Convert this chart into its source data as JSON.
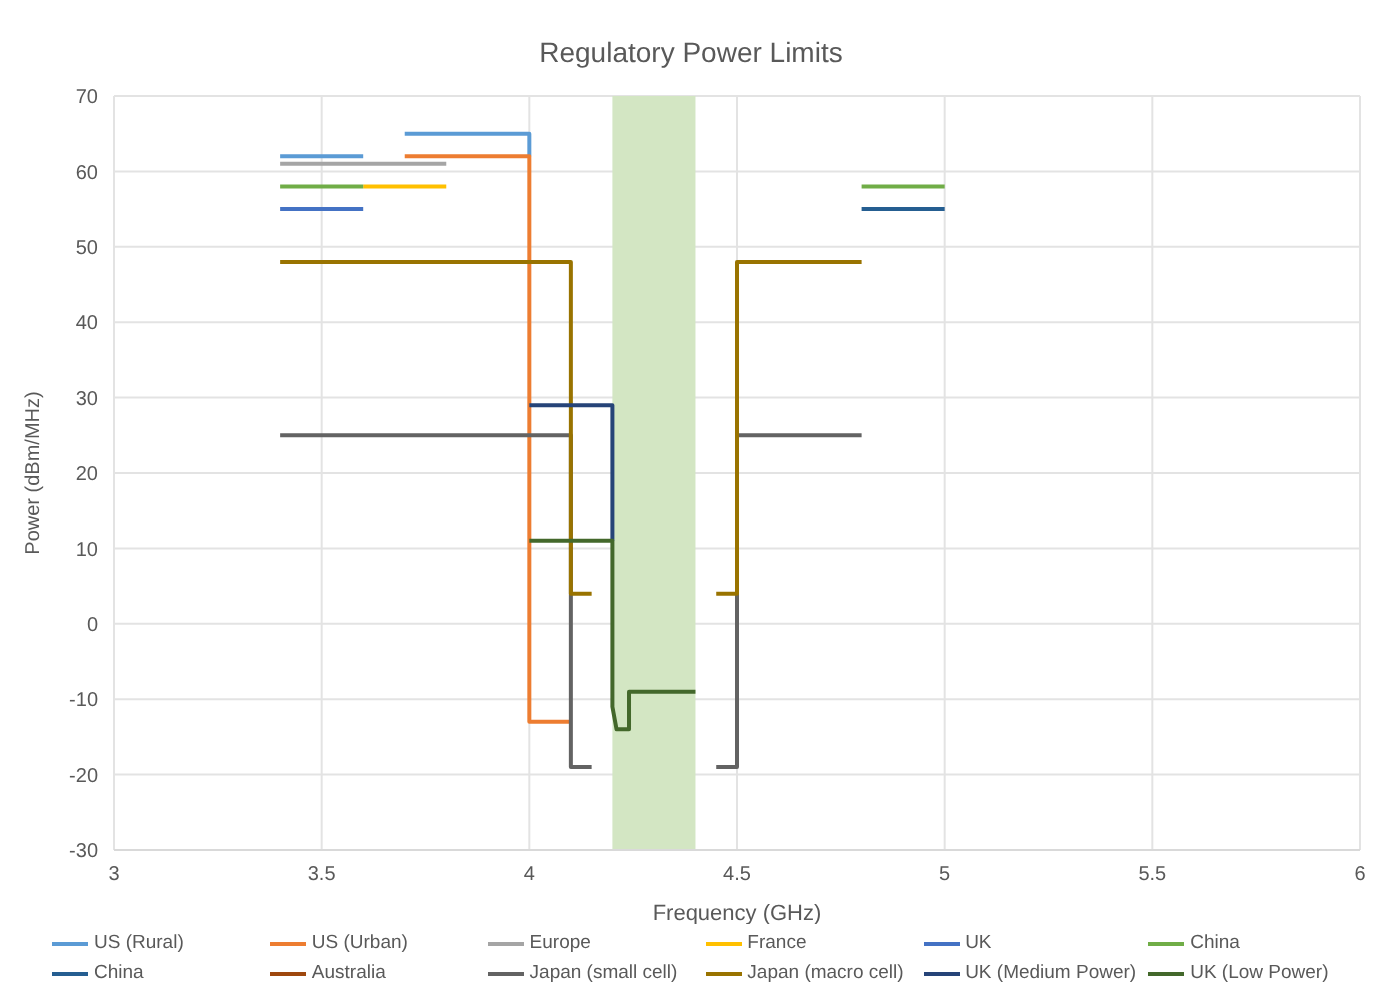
{
  "chart_data": {
    "type": "line",
    "title": "Regulatory Power Limits",
    "xlabel": "Frequency (GHz)",
    "ylabel": "Power (dBm/MHz)",
    "xlim": [
      3,
      6
    ],
    "xticks": [
      3,
      3.5,
      4,
      4.5,
      5,
      5.5,
      6
    ],
    "ylim": [
      -30,
      70
    ],
    "yticks": [
      -30,
      -20,
      -10,
      0,
      10,
      20,
      30,
      40,
      50,
      60,
      70
    ],
    "grid": true,
    "legend": "bottom",
    "marker": "none",
    "line_style": "solid",
    "bands": [
      {
        "axis": "x",
        "from": 4.2,
        "to": 4.4,
        "color": "#d3e6c3"
      }
    ],
    "series": [
      {
        "name": "US (Rural)",
        "color": "#5b9bd5",
        "x": [
          3.4,
          3.6,
          3.65,
          3.7,
          4.0,
          4.0
        ],
        "values": [
          62,
          62,
          null,
          65,
          65,
          62
        ]
      },
      {
        "name": "US (Urban)",
        "color": "#ed7d31",
        "x": [
          3.7,
          4.0,
          4.0,
          4.1
        ],
        "values": [
          62,
          62,
          -13,
          -13
        ]
      },
      {
        "name": "Europe",
        "color": "#a5a5a5",
        "x": [
          3.4,
          3.8
        ],
        "values": [
          61,
          61
        ]
      },
      {
        "name": "France",
        "color": "#ffc000",
        "x": [
          3.6,
          3.8
        ],
        "values": [
          58,
          58
        ]
      },
      {
        "name": "UK",
        "color": "#4472c4",
        "x": [
          3.4,
          3.6
        ],
        "values": [
          55,
          55
        ]
      },
      {
        "name": "China",
        "color": "#70ad47",
        "x": [
          3.4,
          3.6,
          4.2,
          4.8,
          5.0
        ],
        "values": [
          58,
          58,
          null,
          58,
          58
        ]
      },
      {
        "name": "China",
        "color": "#255e91",
        "x": [
          4.8,
          5.0
        ],
        "values": [
          55,
          55
        ]
      },
      {
        "name": "Australia",
        "color": "#9e480e"
      },
      {
        "name": "Japan (small cell)",
        "color": "#636363",
        "x": [
          3.4,
          4.1,
          4.1,
          4.15,
          4.3,
          4.45,
          4.5,
          4.5,
          4.8
        ],
        "values": [
          25,
          25,
          -19,
          -19,
          null,
          -19,
          -19,
          25,
          25
        ]
      },
      {
        "name": "Japan (macro cell)",
        "color": "#997300",
        "x": [
          3.4,
          4.1,
          4.1,
          4.15,
          4.3,
          4.45,
          4.5,
          4.5,
          4.8
        ],
        "values": [
          48,
          48,
          4,
          4,
          null,
          4,
          4,
          48,
          48
        ]
      },
      {
        "name": "UK (Medium Power)",
        "color": "#264478",
        "x": [
          4.0,
          4.2,
          4.2
        ],
        "values": [
          29,
          29,
          11
        ]
      },
      {
        "name": "UK (Low Power)",
        "color": "#43682b",
        "x": [
          4.0,
          4.2,
          4.2,
          4.21,
          4.24,
          4.24,
          4.4
        ],
        "values": [
          11,
          11,
          -11,
          -14,
          -14,
          -9,
          -9
        ]
      }
    ]
  }
}
